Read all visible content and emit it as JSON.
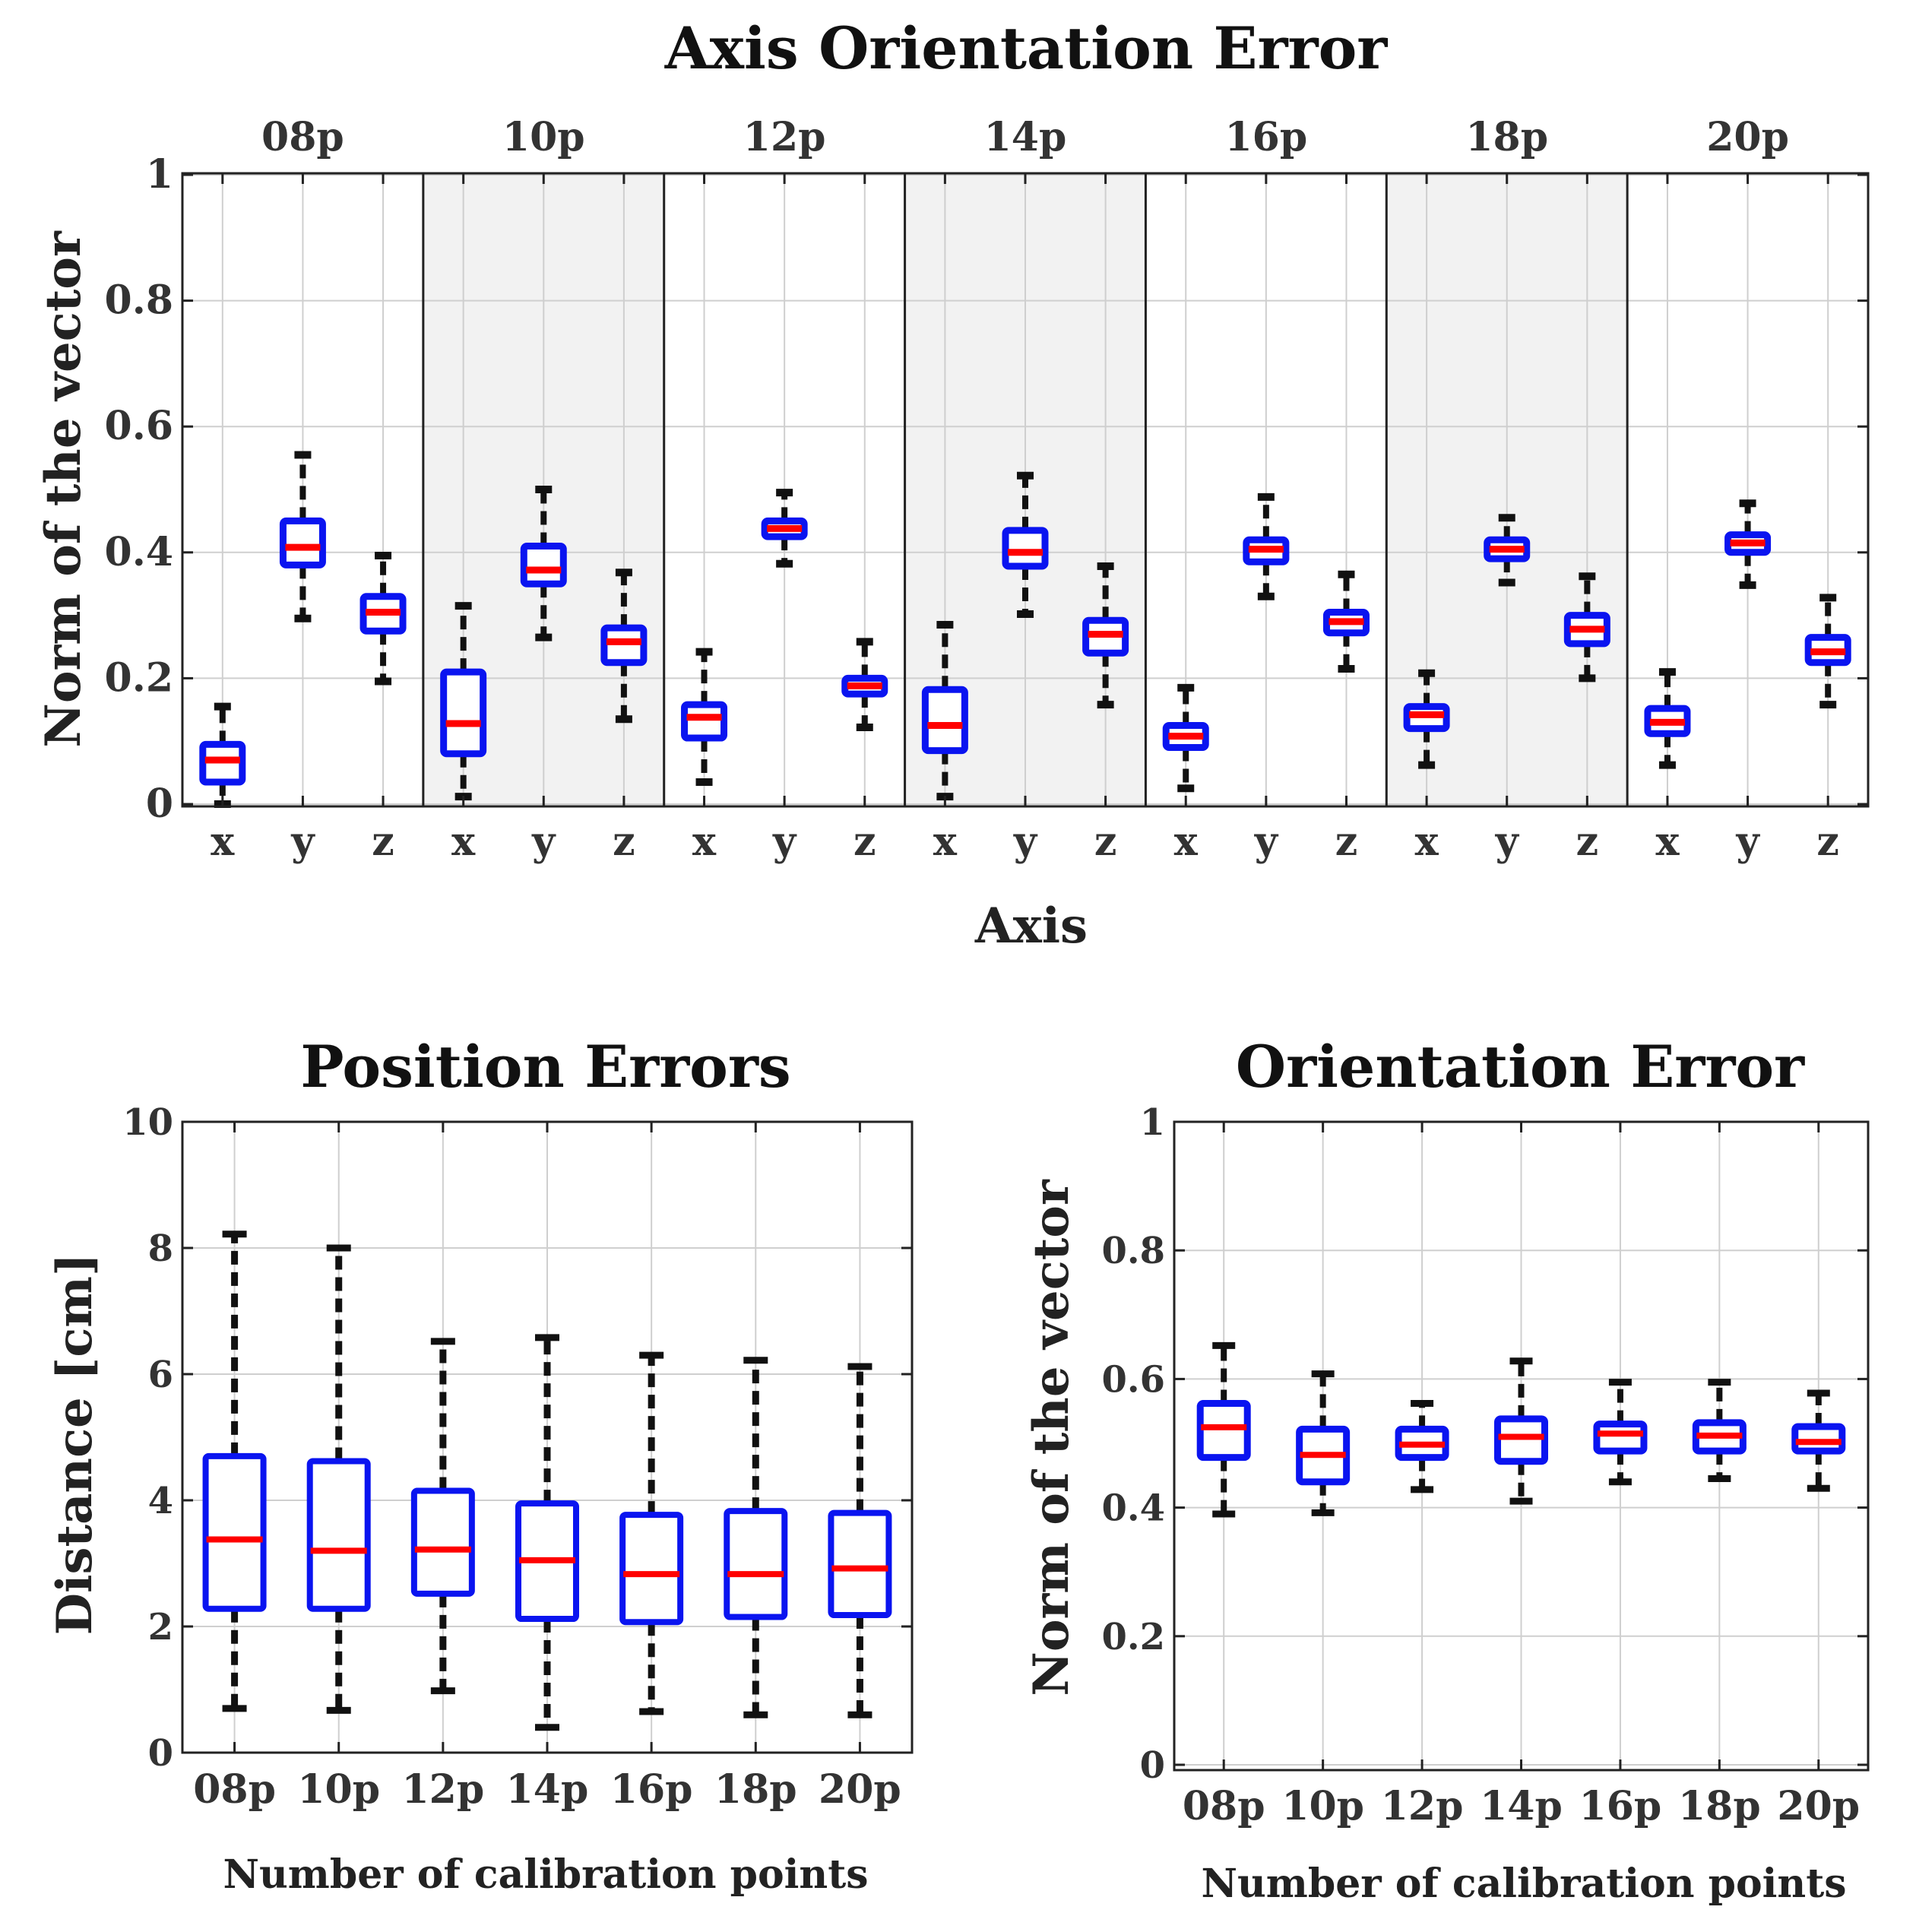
{
  "colors": {
    "box": "#0a14f0",
    "median": "#ff0000",
    "whisker": "#111111",
    "grid": "#cfcfcf",
    "shade": "#f2f2f2"
  },
  "chart_data": [
    {
      "id": "axis",
      "type": "boxplot",
      "title": "Axis Orientation Error",
      "xlabel": "Axis",
      "ylabel": "Norm of the vector",
      "ylim": [
        0,
        1
      ],
      "yticks": [
        "0",
        "0.2",
        "0.4",
        "0.6",
        "0.8",
        "1"
      ],
      "group_labels": [
        "08p",
        "10p",
        "12p",
        "14p",
        "16p",
        "18p",
        "20p"
      ],
      "shaded_groups": [
        1,
        3,
        5
      ],
      "categories": [
        "x",
        "y",
        "z",
        "x",
        "y",
        "z",
        "x",
        "y",
        "z",
        "x",
        "y",
        "z",
        "x",
        "y",
        "z",
        "x",
        "y",
        "z",
        "x",
        "y",
        "z"
      ],
      "boxes": [
        {
          "q1": 0.035,
          "med": 0.07,
          "q3": 0.095,
          "lo": 0.0,
          "hi": 0.155
        },
        {
          "q1": 0.38,
          "med": 0.408,
          "q3": 0.45,
          "lo": 0.295,
          "hi": 0.555
        },
        {
          "q1": 0.275,
          "med": 0.305,
          "q3": 0.33,
          "lo": 0.195,
          "hi": 0.395
        },
        {
          "q1": 0.08,
          "med": 0.128,
          "q3": 0.21,
          "lo": 0.012,
          "hi": 0.315
        },
        {
          "q1": 0.35,
          "med": 0.372,
          "q3": 0.41,
          "lo": 0.265,
          "hi": 0.5
        },
        {
          "q1": 0.225,
          "med": 0.258,
          "q3": 0.28,
          "lo": 0.135,
          "hi": 0.368
        },
        {
          "q1": 0.105,
          "med": 0.138,
          "q3": 0.158,
          "lo": 0.035,
          "hi": 0.242
        },
        {
          "q1": 0.425,
          "med": 0.438,
          "q3": 0.45,
          "lo": 0.382,
          "hi": 0.495
        },
        {
          "q1": 0.175,
          "med": 0.188,
          "q3": 0.2,
          "lo": 0.122,
          "hi": 0.258
        },
        {
          "q1": 0.085,
          "med": 0.125,
          "q3": 0.182,
          "lo": 0.012,
          "hi": 0.285
        },
        {
          "q1": 0.378,
          "med": 0.4,
          "q3": 0.435,
          "lo": 0.302,
          "hi": 0.522
        },
        {
          "q1": 0.24,
          "med": 0.27,
          "q3": 0.292,
          "lo": 0.158,
          "hi": 0.378
        },
        {
          "q1": 0.09,
          "med": 0.108,
          "q3": 0.125,
          "lo": 0.025,
          "hi": 0.185
        },
        {
          "q1": 0.385,
          "med": 0.405,
          "q3": 0.42,
          "lo": 0.33,
          "hi": 0.488
        },
        {
          "q1": 0.272,
          "med": 0.29,
          "q3": 0.305,
          "lo": 0.215,
          "hi": 0.365
        },
        {
          "q1": 0.12,
          "med": 0.142,
          "q3": 0.155,
          "lo": 0.062,
          "hi": 0.208
        },
        {
          "q1": 0.39,
          "med": 0.405,
          "q3": 0.42,
          "lo": 0.352,
          "hi": 0.455
        },
        {
          "q1": 0.255,
          "med": 0.278,
          "q3": 0.3,
          "lo": 0.2,
          "hi": 0.362
        },
        {
          "q1": 0.112,
          "med": 0.13,
          "q3": 0.152,
          "lo": 0.062,
          "hi": 0.21
        },
        {
          "q1": 0.4,
          "med": 0.415,
          "q3": 0.428,
          "lo": 0.348,
          "hi": 0.478
        },
        {
          "q1": 0.225,
          "med": 0.242,
          "q3": 0.265,
          "lo": 0.158,
          "hi": 0.328
        }
      ]
    },
    {
      "id": "pos",
      "type": "boxplot",
      "title": "Position Errors",
      "xlabel": "Number of calibration points",
      "ylabel": "Distance [cm]",
      "ylim": [
        0,
        10
      ],
      "yticks": [
        "0",
        "2",
        "4",
        "6",
        "8",
        "10"
      ],
      "categories": [
        "08p",
        "10p",
        "12p",
        "14p",
        "16p",
        "18p",
        "20p"
      ],
      "boxes": [
        {
          "q1": 2.28,
          "med": 3.38,
          "q3": 4.7,
          "lo": 0.7,
          "hi": 8.22
        },
        {
          "q1": 2.28,
          "med": 3.2,
          "q3": 4.62,
          "lo": 0.67,
          "hi": 8.0
        },
        {
          "q1": 2.52,
          "med": 3.22,
          "q3": 4.15,
          "lo": 0.98,
          "hi": 6.52
        },
        {
          "q1": 2.12,
          "med": 3.05,
          "q3": 3.95,
          "lo": 0.4,
          "hi": 6.58
        },
        {
          "q1": 2.07,
          "med": 2.83,
          "q3": 3.77,
          "lo": 0.65,
          "hi": 6.3
        },
        {
          "q1": 2.15,
          "med": 2.83,
          "q3": 3.83,
          "lo": 0.6,
          "hi": 6.22
        },
        {
          "q1": 2.18,
          "med": 2.92,
          "q3": 3.8,
          "lo": 0.6,
          "hi": 6.12
        }
      ]
    },
    {
      "id": "orient",
      "type": "boxplot",
      "title": "Orientation Error",
      "xlabel": "Number of calibration points",
      "ylabel": "Norm of the vector",
      "ylim": [
        0,
        1
      ],
      "yticks": [
        "0",
        "0.2",
        "0.4",
        "0.6",
        "0.8",
        "1"
      ],
      "categories": [
        "08p",
        "10p",
        "12p",
        "14p",
        "16p",
        "18p",
        "20p"
      ],
      "boxes": [
        {
          "q1": 0.478,
          "med": 0.525,
          "q3": 0.562,
          "lo": 0.39,
          "hi": 0.652
        },
        {
          "q1": 0.44,
          "med": 0.482,
          "q3": 0.522,
          "lo": 0.392,
          "hi": 0.608
        },
        {
          "q1": 0.478,
          "med": 0.498,
          "q3": 0.522,
          "lo": 0.428,
          "hi": 0.562
        },
        {
          "q1": 0.472,
          "med": 0.51,
          "q3": 0.538,
          "lo": 0.41,
          "hi": 0.628
        },
        {
          "q1": 0.488,
          "med": 0.515,
          "q3": 0.53,
          "lo": 0.44,
          "hi": 0.595
        },
        {
          "q1": 0.488,
          "med": 0.512,
          "q3": 0.532,
          "lo": 0.445,
          "hi": 0.595
        },
        {
          "q1": 0.488,
          "med": 0.502,
          "q3": 0.526,
          "lo": 0.43,
          "hi": 0.578
        }
      ]
    }
  ]
}
